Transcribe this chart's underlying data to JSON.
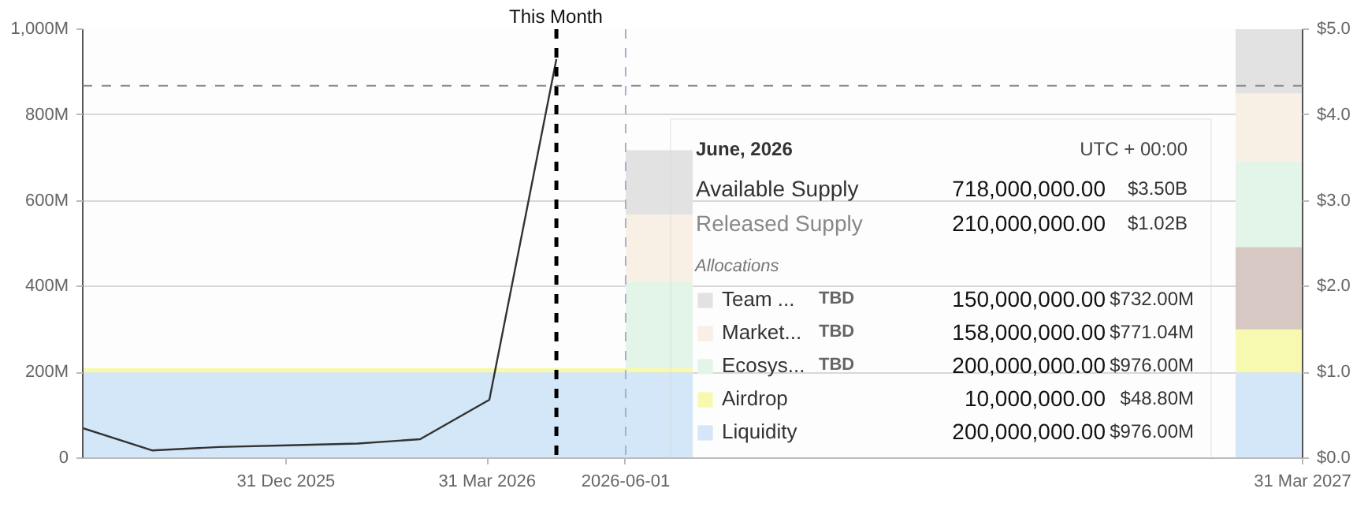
{
  "chart_data": {
    "type": "area",
    "stacked": true,
    "x": [
      "2025-10-01",
      "2025-11-01",
      "2025-12-01",
      "2026-01-01",
      "2026-02-01",
      "2026-03-01",
      "2026-04-01",
      "2026-05-01",
      "2026-06-01",
      "2026-07-01",
      "2026-08-01",
      "2026-09-01",
      "2026-10-01",
      "2026-11-01",
      "2026-12-01",
      "2027-01-01",
      "2027-02-01",
      "2027-03-01",
      "2027-03-31"
    ],
    "series": [
      {
        "name": "Liquidity",
        "color": "#d3e7f8",
        "values": [
          200,
          200,
          200,
          200,
          200,
          200,
          200,
          200,
          200,
          null,
          null,
          null,
          null,
          null,
          null,
          null,
          null,
          200,
          200
        ]
      },
      {
        "name": "Airdrop",
        "color": "#f8f9b0",
        "values": [
          10,
          10,
          10,
          10,
          10,
          10,
          10,
          10,
          10,
          null,
          null,
          null,
          null,
          null,
          null,
          null,
          null,
          100,
          100
        ]
      },
      {
        "color": "#d8c8c3",
        "values": [
          null,
          null,
          null,
          null,
          null,
          null,
          null,
          null,
          null,
          null,
          null,
          null,
          null,
          null,
          null,
          null,
          null,
          192,
          192
        ]
      },
      {
        "name": "Ecosys...",
        "color": "#e3f4e8",
        "values": [
          0,
          0,
          0,
          0,
          0,
          0,
          0,
          0,
          200,
          null,
          null,
          null,
          null,
          null,
          null,
          null,
          null,
          200,
          200
        ]
      },
      {
        "name": "Market...",
        "color": "#f8efe5",
        "values": [
          0,
          0,
          0,
          0,
          0,
          0,
          0,
          0,
          158,
          null,
          null,
          null,
          null,
          null,
          null,
          null,
          null,
          158,
          158
        ]
      },
      {
        "name": "Team ...",
        "color": "#e2e2e2",
        "values": [
          0,
          0,
          0,
          0,
          0,
          0,
          0,
          0,
          150,
          null,
          null,
          null,
          null,
          null,
          null,
          null,
          null,
          150,
          150
        ]
      },
      {
        "type": "line",
        "axis": "y2",
        "color": "#333333",
        "x": [
          "2025-10-01",
          "2025-11-01",
          "2025-12-01",
          "2026-01-01",
          "2026-02-01",
          "2026-03-01",
          "2026-04-01",
          "2026-05-01"
        ],
        "values": [
          0.35,
          0.09,
          0.13,
          0.15,
          0.17,
          0.22,
          0.68,
          4.65
        ]
      }
    ],
    "xlim": [
      "2025-10-01",
      "2027-03-31"
    ],
    "xticks": [
      {
        "value": "2025-12-31",
        "label": "31 Dec 2025"
      },
      {
        "value": "2026-03-31",
        "label": "31 Mar 2026"
      },
      {
        "value": "2027-03-31",
        "label": "31 Mar 2027"
      }
    ],
    "ylim": [
      0,
      1000
    ],
    "yticks": [
      0,
      {
        "value": 200,
        "label": "200M"
      },
      {
        "value": 400,
        "label": "400M"
      },
      {
        "value": 600,
        "label": "600M"
      },
      {
        "value": 800,
        "label": "800M"
      },
      {
        "value": 1000,
        "label": "1,000M"
      }
    ],
    "y2lim": [
      0,
      5
    ],
    "y2ticks": [
      {
        "value": 0,
        "label": "$0.0"
      },
      {
        "value": 1,
        "label": "$1.0"
      },
      {
        "value": 2,
        "label": "$2.0"
      },
      {
        "value": 3,
        "label": "$3.0"
      },
      {
        "value": 4,
        "label": "$4.0"
      },
      {
        "value": 5,
        "label": "$5.0"
      }
    ],
    "grid": "y",
    "legend": "bottom right",
    "legend_title": "Allocations",
    "ref_lines": [
      {
        "axis": "x",
        "value": "2026-05-01",
        "label": "This Month",
        "color": "#000000",
        "line_style": "dashed"
      },
      {
        "axis": "x",
        "value": "2026-06-01",
        "label": "2026-06-01",
        "color": "#a9aecb",
        "line_style": "dashed"
      },
      {
        "axis": "y",
        "value": 868,
        "color": "#888888",
        "line_style": "dashed"
      }
    ],
    "annotations": [
      "June, 2026",
      "UTC + 00:00",
      "Available Supply",
      "718,000,000.00",
      "$3.50B",
      "Released Supply",
      "210,000,000.00",
      "$1.02B",
      "TBD",
      "150,000,000.00",
      "$732.00M",
      "TBD",
      "158,000,000.00",
      "$771.04M",
      "TBD",
      "200,000,000.00",
      "$976.00M",
      "10,000,000.00",
      "$48.80M",
      "200,000,000.00",
      "$976.00M"
    ]
  }
}
